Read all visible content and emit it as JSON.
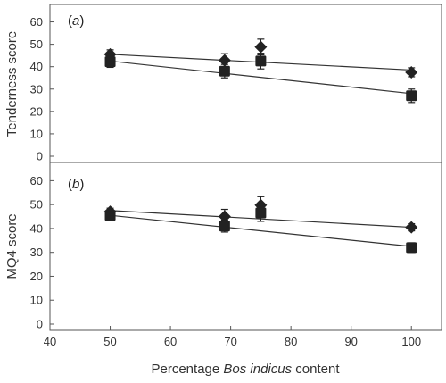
{
  "chart_data": [
    {
      "type": "scatter",
      "panel_label_prefix": "(",
      "panel_label_letter": "a",
      "panel_label_suffix": ")",
      "ylabel": "Tenderness score",
      "ylim": [
        0,
        65
      ],
      "yticks": [
        0,
        10,
        20,
        30,
        40,
        50,
        60
      ],
      "xlim": [
        40,
        105
      ],
      "grid": false,
      "series": [
        {
          "marker": "diamond",
          "color": "#222222",
          "points": [
            {
              "x": 50,
              "y": 45.5,
              "err": 2.0
            },
            {
              "x": 69,
              "y": 42.8,
              "err": 3.0
            },
            {
              "x": 75,
              "y": 48.8,
              "err": 3.5
            },
            {
              "x": 100,
              "y": 37.5,
              "err": 2.0
            }
          ],
          "fit": {
            "x": [
              50,
              100
            ],
            "y": [
              45.5,
              38.5
            ]
          }
        },
        {
          "marker": "square",
          "color": "#222222",
          "points": [
            {
              "x": 50,
              "y": 42.2,
              "err": 2.5
            },
            {
              "x": 69,
              "y": 38.0,
              "err": 3.0
            },
            {
              "x": 75,
              "y": 42.5,
              "err": 3.5
            },
            {
              "x": 100,
              "y": 27.0,
              "err": 3.0
            }
          ],
          "fit": {
            "x": [
              50,
              100
            ],
            "y": [
              42.5,
              28.0
            ]
          }
        }
      ]
    },
    {
      "type": "scatter",
      "panel_label_prefix": "(",
      "panel_label_letter": "b",
      "panel_label_suffix": ")",
      "ylabel": "MQ4 score",
      "ylim": [
        0,
        65
      ],
      "yticks": [
        0,
        10,
        20,
        30,
        40,
        50,
        60
      ],
      "xlim": [
        40,
        105
      ],
      "xticks": [
        40,
        50,
        60,
        70,
        80,
        90,
        100
      ],
      "xlabel_prefix": "Percentage ",
      "xlabel_italic": "Bos indicus",
      "xlabel_suffix": " content",
      "grid": false,
      "series": [
        {
          "marker": "diamond",
          "color": "#222222",
          "points": [
            {
              "x": 50,
              "y": 47.0,
              "err": 1.5
            },
            {
              "x": 69,
              "y": 45.0,
              "err": 3.0
            },
            {
              "x": 75,
              "y": 49.8,
              "err": 3.5
            },
            {
              "x": 100,
              "y": 40.5,
              "err": 1.5
            }
          ],
          "fit": {
            "x": [
              50,
              100
            ],
            "y": [
              47.5,
              40.5
            ]
          }
        },
        {
          "marker": "square",
          "color": "#222222",
          "points": [
            {
              "x": 50,
              "y": 45.5,
              "err": 2.0
            },
            {
              "x": 69,
              "y": 41.0,
              "err": 2.5
            },
            {
              "x": 75,
              "y": 46.5,
              "err": 3.5
            },
            {
              "x": 100,
              "y": 32.0,
              "err": 2.0
            }
          ],
          "fit": {
            "x": [
              50,
              100
            ],
            "y": [
              45.5,
              32.5
            ]
          }
        }
      ]
    }
  ]
}
